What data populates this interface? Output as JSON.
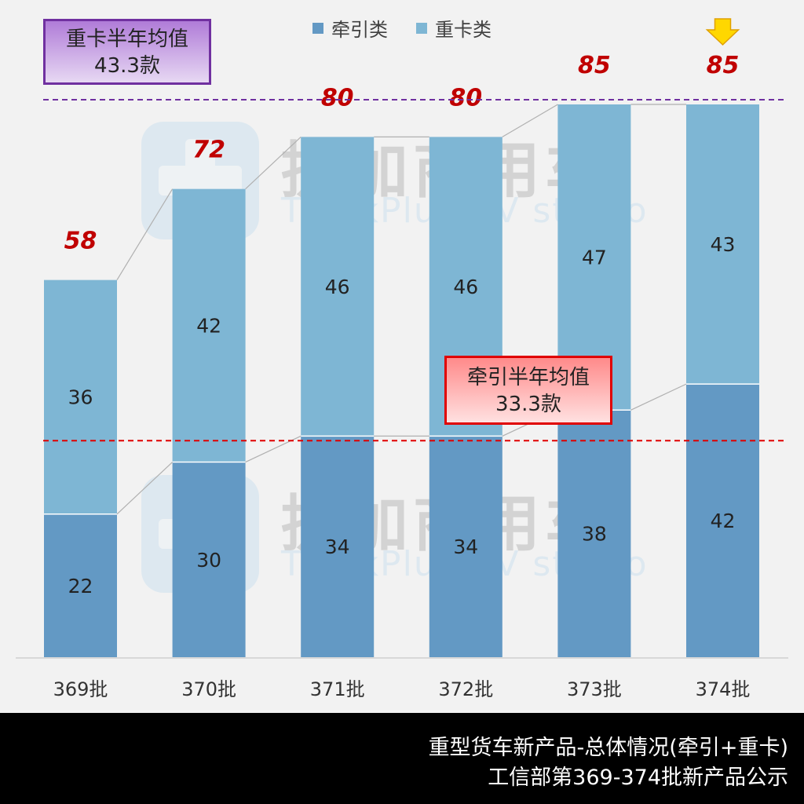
{
  "legend": {
    "traction_label": "牵引类",
    "heavy_label": "重卡类"
  },
  "callouts": {
    "heavy_avg_title": "重卡半年均值",
    "heavy_avg_value": "43.3款",
    "traction_avg_title": "牵引半年均值",
    "traction_avg_value": "33.3款"
  },
  "watermark": {
    "cn": "提加商用车",
    "en": "TruckPlus CV studio"
  },
  "footer": {
    "line1": "重型货车新产品-总体情况(牵引+重卡)",
    "line2": "工信部第369-374批新产品公示"
  },
  "colors": {
    "traction": "#6399c4",
    "heavy": "#7eb6d4",
    "heavy_avg_line": "#7030a0",
    "traction_avg_line": "#e00000",
    "total_label": "#c00000",
    "arrow": "#ffd700"
  },
  "chart_data": {
    "type": "bar",
    "stacked": true,
    "categories": [
      "369批",
      "370批",
      "371批",
      "372批",
      "373批",
      "374批"
    ],
    "series": [
      {
        "name": "牵引类",
        "values": [
          22,
          30,
          34,
          34,
          38,
          42
        ]
      },
      {
        "name": "重卡类",
        "values": [
          36,
          42,
          46,
          46,
          47,
          43
        ]
      }
    ],
    "totals": [
      58,
      72,
      80,
      80,
      85,
      85
    ],
    "reference_lines": [
      {
        "value": 85,
        "style": "dashed"
      },
      {
        "value": 33.3,
        "style": "dashed"
      }
    ],
    "highlight_category": "374批",
    "title": "",
    "xlabel": "",
    "ylabel": "",
    "ylim": [
      0,
      85
    ],
    "legend_position": "top"
  }
}
